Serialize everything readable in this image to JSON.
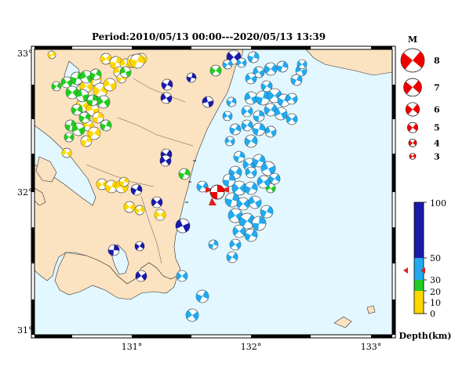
{
  "title": "Period:2010/05/13 00:00---2020/05/13 13:39",
  "lon_labels": [
    "131°",
    "132°",
    "133°"
  ],
  "lat_labels": [
    "33°",
    "32°",
    "31°"
  ],
  "magnitude_legend": {
    "heading": "M",
    "values": [
      "8",
      "7",
      "6",
      "5",
      "4",
      "3"
    ]
  },
  "depth_legend": {
    "ticks": [
      "100",
      "50",
      "30",
      "20",
      "10",
      "0"
    ],
    "unit_label": "Depth(km)",
    "colors": {
      "0-10": "#ffd700",
      "10-20": "#22cc22",
      "20-50": "#22aaee",
      "50-100": "#1a1aaa"
    }
  },
  "colors": {
    "sea": "#e2f7ff",
    "land": "#fbe2c0",
    "main_event": "#ee0000",
    "marker": "#dd2222"
  }
}
